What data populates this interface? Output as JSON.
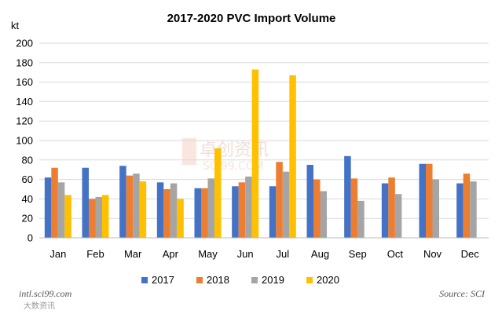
{
  "chart_data": {
    "type": "bar",
    "title": "2017-2020 PVC Import Volume",
    "ylabel": "kt",
    "xlabel": "",
    "ylim": [
      0,
      200
    ],
    "yticks": [
      0,
      20,
      40,
      60,
      80,
      100,
      120,
      140,
      160,
      180,
      200
    ],
    "grid": true,
    "legend_position": "bottom",
    "categories": [
      "Jan",
      "Feb",
      "Mar",
      "Apr",
      "May",
      "Jun",
      "Jul",
      "Aug",
      "Sep",
      "Oct",
      "Nov",
      "Dec"
    ],
    "series": [
      {
        "name": "2017",
        "color": "#4472c4",
        "values": [
          62,
          72,
          74,
          57,
          51,
          53,
          53,
          75,
          84,
          56,
          76,
          56
        ]
      },
      {
        "name": "2018",
        "color": "#ed7d31",
        "values": [
          72,
          40,
          64,
          50,
          51,
          57,
          78,
          60,
          61,
          62,
          76,
          66
        ]
      },
      {
        "name": "2019",
        "color": "#a5a5a5",
        "values": [
          57,
          42,
          66,
          56,
          61,
          63,
          68,
          48,
          38,
          45,
          60,
          58
        ]
      },
      {
        "name": "2020",
        "color": "#ffc000",
        "values": [
          44,
          44,
          58,
          40,
          92,
          173,
          167,
          null,
          null,
          null,
          null,
          null
        ]
      }
    ]
  },
  "footer": {
    "left": "intl.sci99.com",
    "right": "Source: SCI"
  },
  "watermark": {
    "text": "卓创资讯",
    "sub": "SCI99.COM",
    "corner": "大数资讯"
  }
}
